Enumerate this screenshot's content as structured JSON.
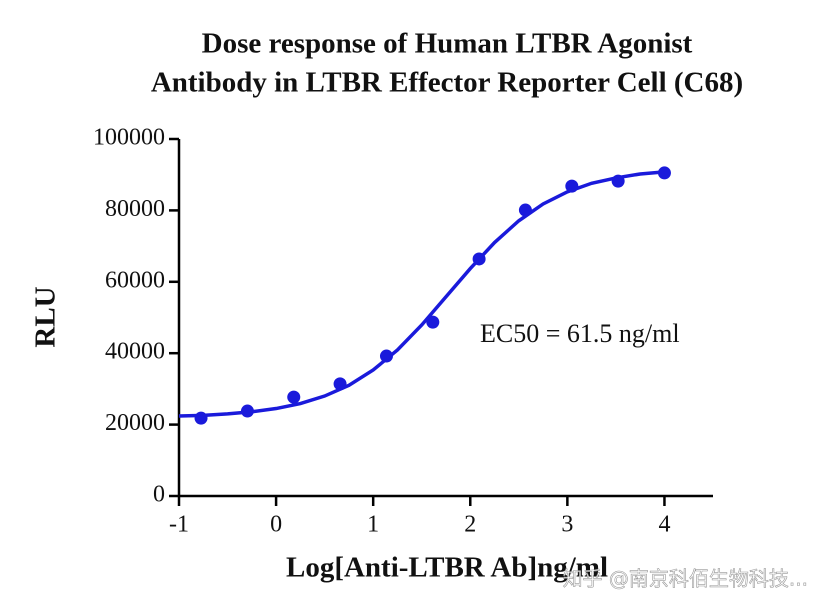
{
  "chart_data": {
    "type": "scatter",
    "title": [
      "Dose response of Human LTBR Agonist",
      "Antibody in LTBR Effector Reporter Cell (C68)"
    ],
    "x_label": "Log[Anti-LTBR Ab]ng/ml",
    "y_label": "RLU",
    "annotation": "EC50 = 61.5 ng/ml",
    "watermark": "知乎 @南京科佰生物科技...",
    "xlim": [
      -1,
      4.5
    ],
    "xticks": [
      -1,
      0,
      1,
      2,
      3,
      4
    ],
    "ylim": [
      0,
      100000
    ],
    "yticks": [
      0,
      20000,
      40000,
      60000,
      80000,
      100000
    ],
    "series": [
      {
        "kind": "markers",
        "color": "#1a1adb",
        "x": [
          -0.773,
          -0.295,
          0.182,
          0.659,
          1.137,
          1.614,
          2.091,
          2.568,
          3.046,
          3.523,
          4.0
        ],
        "values": [
          21800,
          23800,
          27700,
          31400,
          39200,
          48700,
          66400,
          80100,
          86800,
          88200,
          90500
        ]
      },
      {
        "kind": "line",
        "color": "#1a1adb",
        "x": [
          -1,
          -0.75,
          -0.5,
          -0.25,
          0,
          0.25,
          0.5,
          0.75,
          1,
          1.25,
          1.5,
          1.75,
          2,
          2.25,
          2.5,
          2.75,
          3,
          3.25,
          3.5,
          3.75,
          4
        ],
        "values": [
          22400,
          22600,
          23000,
          23600,
          24500,
          25900,
          28000,
          31000,
          35300,
          40900,
          47900,
          55800,
          63700,
          71000,
          77100,
          81800,
          85200,
          87600,
          89100,
          90200,
          90800
        ]
      }
    ]
  }
}
